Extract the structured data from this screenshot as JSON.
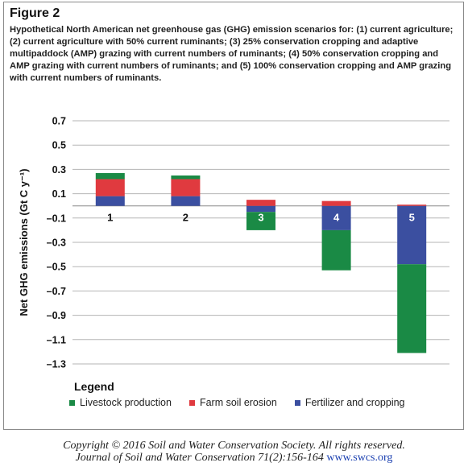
{
  "figure": {
    "label": "Figure 2",
    "caption": "Hypothetical North American net greenhouse gas (GHG) emission scenarios for: (1) current agriculture; (2) current agriculture with 50% current ruminants; (3) 25% conservation cropping and adaptive multipaddock (AMP) grazing with current numbers of ruminants; (4) 50% conservation cropping and AMP grazing with current numbers of ruminants; and (5) 100% conservation cropping and AMP grazing with current numbers of ruminants."
  },
  "legend": {
    "title": "Legend",
    "items": [
      {
        "label": "Livestock production",
        "color": "#1a8a45"
      },
      {
        "label": "Farm soil erosion",
        "color": "#e03a3f"
      },
      {
        "label": "Fertilizer and cropping",
        "color": "#3b4fa0"
      }
    ]
  },
  "copyright": {
    "line1": "Copyright © 2016 Soil and Water Conservation Society. All rights reserved.",
    "line2": "Journal of Soil and Water Conservation 71(2):156-164",
    "url": "www.swcs.org"
  },
  "chart_data": {
    "type": "bar",
    "stacked": true,
    "ylabel": "Net GHG emissions (Gt C y⁻¹)",
    "ylim": [
      -1.3,
      0.7
    ],
    "yticks": [
      "0.7",
      "0.5",
      "0.3",
      "0.1",
      "–0.1",
      "–0.3",
      "–0.5",
      "–0.7",
      "–0.9",
      "–1.1",
      "–1.3"
    ],
    "ytick_values": [
      0.7,
      0.5,
      0.3,
      0.1,
      -0.1,
      -0.3,
      -0.5,
      -0.7,
      -0.9,
      -1.1,
      -1.3
    ],
    "grid": true,
    "categories": [
      "1",
      "2",
      "3",
      "4",
      "5"
    ],
    "category_label_colors": [
      "#111111",
      "#111111",
      "#ffffff",
      "#ffffff",
      "#ffffff"
    ],
    "series": [
      {
        "name": "Fertilizer and cropping",
        "color": "#3b4fa0",
        "values": [
          0.08,
          0.08,
          -0.05,
          -0.2,
          -0.48
        ]
      },
      {
        "name": "Farm soil erosion",
        "color": "#e03a3f",
        "values": [
          0.14,
          0.14,
          0.05,
          0.04,
          0.01
        ]
      },
      {
        "name": "Livestock production",
        "color": "#1a8a45",
        "values": [
          0.05,
          0.03,
          -0.15,
          -0.33,
          -0.73
        ]
      }
    ]
  }
}
